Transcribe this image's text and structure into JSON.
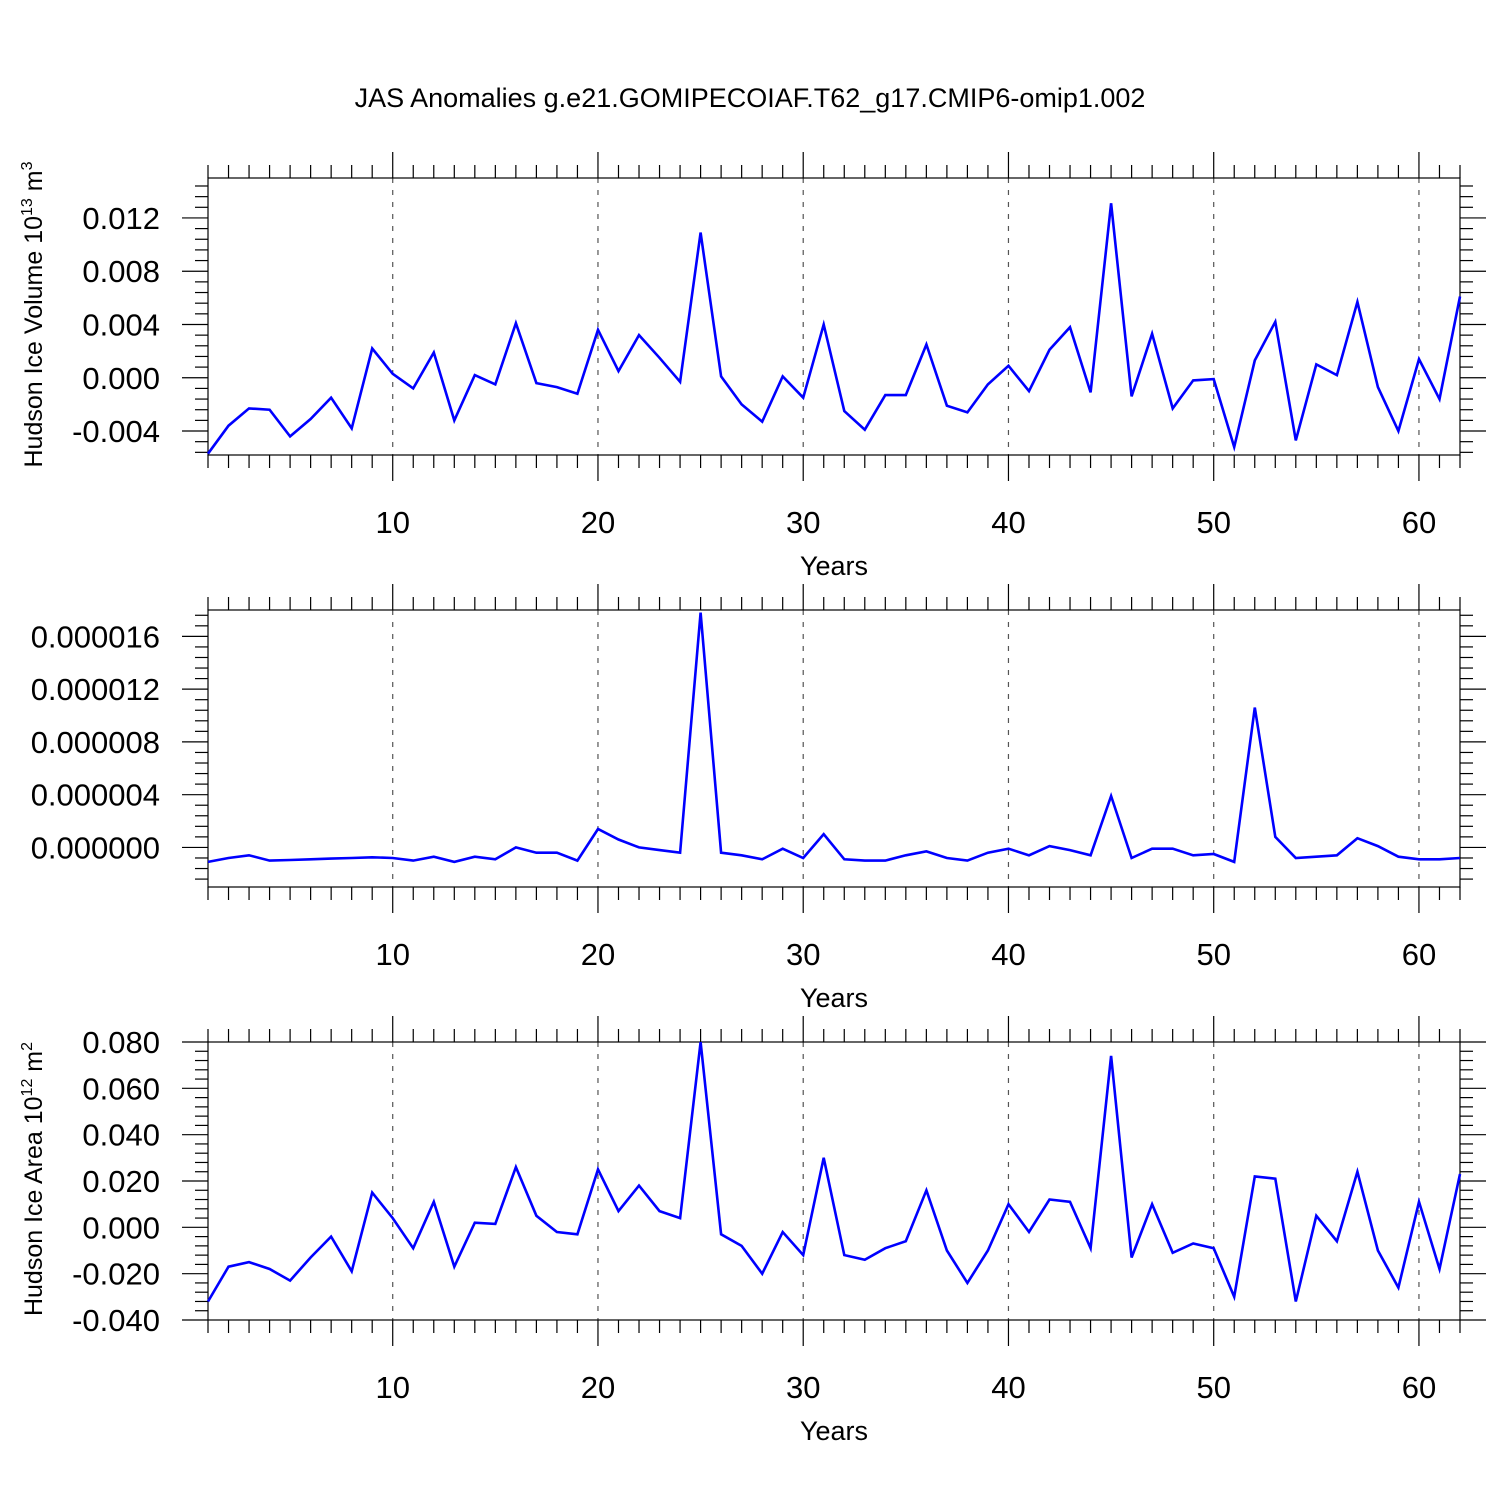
{
  "title": "JAS Anomalies g.e21.GOMIPECOIAF.T62_g17.CMIP6-omip1.002",
  "colors": {
    "line": "#0000ff",
    "axes": "#000000"
  },
  "chart_data": [
    {
      "type": "line",
      "title": "",
      "xlabel": "Years",
      "ylabel": {
        "text": "Hudson Ice Volume 10",
        "sup": "13",
        "tail": " m",
        "sup2": "3"
      },
      "xlim": [
        1,
        62
      ],
      "ylim": [
        -0.0058,
        0.015
      ],
      "xticks": [
        10,
        20,
        30,
        40,
        50,
        60
      ],
      "xtick_labels": [
        "10",
        "20",
        "30",
        "40",
        "50",
        "60"
      ],
      "yticks": [
        -0.004,
        0.0,
        0.004,
        0.008,
        0.012
      ],
      "ytick_labels": [
        "-0.004",
        "0.000",
        "0.004",
        "0.008",
        "0.012"
      ],
      "grid": "vertical dashed",
      "x": [
        1,
        2,
        3,
        4,
        5,
        6,
        7,
        8,
        9,
        10,
        11,
        12,
        13,
        14,
        15,
        16,
        17,
        18,
        19,
        20,
        21,
        22,
        23,
        24,
        25,
        26,
        27,
        28,
        29,
        30,
        31,
        32,
        33,
        34,
        35,
        36,
        37,
        38,
        39,
        40,
        41,
        42,
        43,
        44,
        45,
        46,
        47,
        48,
        49,
        50,
        51,
        52,
        53,
        54,
        55,
        56,
        57,
        58,
        59,
        60,
        61,
        62
      ],
      "values": [
        -0.0057,
        -0.0036,
        -0.0023,
        -0.0024,
        -0.0044,
        -0.0031,
        -0.0015,
        -0.0038,
        0.0022,
        0.0003,
        -0.0008,
        0.0019,
        -0.0032,
        0.0002,
        -0.0005,
        0.0041,
        -0.0004,
        -0.0007,
        -0.0012,
        0.0036,
        0.0005,
        0.0032,
        0.0015,
        -0.0003,
        0.0109,
        0.0001,
        -0.002,
        -0.0033,
        0.0001,
        -0.0015,
        0.004,
        -0.0025,
        -0.0039,
        -0.0013,
        -0.0013,
        0.0025,
        -0.0021,
        -0.0026,
        -0.0005,
        0.0009,
        -0.001,
        0.0021,
        0.0038,
        -0.0011,
        0.0131,
        -0.0014,
        0.0033,
        -0.0023,
        -0.0002,
        -0.0001,
        -0.0052,
        0.0013,
        0.0042,
        -0.0047,
        0.001,
        0.0002,
        0.0057,
        -0.0007,
        -0.004,
        0.0014,
        -0.0016,
        0.0061
      ]
    },
    {
      "type": "line",
      "title": "",
      "xlabel": "Years",
      "ylabel": {
        "text": "",
        "sup": "",
        "tail": "",
        "sup2": ""
      },
      "xlim": [
        1,
        62
      ],
      "ylim": [
        -3e-06,
        1.8e-05
      ],
      "xticks": [
        10,
        20,
        30,
        40,
        50,
        60
      ],
      "xtick_labels": [
        "10",
        "20",
        "30",
        "40",
        "50",
        "60"
      ],
      "yticks": [
        0.0,
        4e-06,
        8e-06,
        1.2e-05,
        1.6e-05
      ],
      "ytick_labels": [
        "0.000000",
        "0.000004",
        "0.000008",
        "0.000012",
        "0.000016"
      ],
      "grid": "vertical dashed",
      "x": [
        1,
        2,
        3,
        4,
        5,
        6,
        7,
        8,
        9,
        10,
        11,
        12,
        13,
        14,
        15,
        16,
        17,
        18,
        19,
        20,
        21,
        22,
        23,
        24,
        25,
        26,
        27,
        28,
        29,
        30,
        31,
        32,
        33,
        34,
        35,
        36,
        37,
        38,
        39,
        40,
        41,
        42,
        43,
        44,
        45,
        46,
        47,
        48,
        49,
        50,
        51,
        52,
        53,
        54,
        55,
        56,
        57,
        58,
        59,
        60,
        61,
        62
      ],
      "values": [
        -1.1e-06,
        -8e-07,
        -6e-07,
        -1e-06,
        -9.5e-07,
        -9e-07,
        -8.5e-07,
        -8e-07,
        -7.5e-07,
        -8e-07,
        -1e-06,
        -7e-07,
        -1.1e-06,
        -7e-07,
        -9e-07,
        0.0,
        -4e-07,
        -4e-07,
        -1e-06,
        1.4e-06,
        6e-07,
        0.0,
        -2e-07,
        -4e-07,
        1.78e-05,
        -4e-07,
        -6e-07,
        -9e-07,
        -1e-07,
        -8e-07,
        1e-06,
        -9e-07,
        -1e-06,
        -1e-06,
        -6e-07,
        -3e-07,
        -8e-07,
        -1e-06,
        -4e-07,
        -1e-07,
        -6e-07,
        1e-07,
        -2e-07,
        -6e-07,
        3.9e-06,
        -8e-07,
        -1e-07,
        -1e-07,
        -6e-07,
        -5e-07,
        -1.1e-06,
        1.06e-05,
        8e-07,
        -8e-07,
        -7e-07,
        -6e-07,
        7e-07,
        1e-07,
        -7e-07,
        -9e-07,
        -9e-07,
        -8e-07
      ]
    },
    {
      "type": "line",
      "title": "",
      "xlabel": "Years",
      "ylabel": {
        "text": "Hudson Ice Area 10",
        "sup": "12",
        "tail": " m",
        "sup2": "2"
      },
      "xlim": [
        1,
        62
      ],
      "ylim": [
        -0.04,
        0.08
      ],
      "xticks": [
        10,
        20,
        30,
        40,
        50,
        60
      ],
      "xtick_labels": [
        "10",
        "20",
        "30",
        "40",
        "50",
        "60"
      ],
      "yticks": [
        -0.04,
        -0.02,
        0.0,
        0.02,
        0.04,
        0.06,
        0.08
      ],
      "ytick_labels": [
        "-0.040",
        "-0.020",
        "0.000",
        "0.020",
        "0.040",
        "0.060",
        "0.080"
      ],
      "grid": "vertical dashed",
      "x": [
        1,
        2,
        3,
        4,
        5,
        6,
        7,
        8,
        9,
        10,
        11,
        12,
        13,
        14,
        15,
        16,
        17,
        18,
        19,
        20,
        21,
        22,
        23,
        24,
        25,
        26,
        27,
        28,
        29,
        30,
        31,
        32,
        33,
        34,
        35,
        36,
        37,
        38,
        39,
        40,
        41,
        42,
        43,
        44,
        45,
        46,
        47,
        48,
        49,
        50,
        51,
        52,
        53,
        54,
        55,
        56,
        57,
        58,
        59,
        60,
        61,
        62
      ],
      "values": [
        -0.032,
        -0.017,
        -0.015,
        -0.018,
        -0.023,
        -0.013,
        -0.004,
        -0.019,
        0.015,
        0.004,
        -0.009,
        0.011,
        -0.017,
        0.002,
        0.0015,
        0.026,
        0.005,
        -0.002,
        -0.003,
        0.025,
        0.007,
        0.018,
        0.007,
        0.004,
        0.08,
        -0.003,
        -0.008,
        -0.02,
        -0.002,
        -0.012,
        0.03,
        -0.012,
        -0.014,
        -0.009,
        -0.006,
        0.016,
        -0.01,
        -0.024,
        -0.01,
        0.01,
        -0.002,
        0.012,
        0.011,
        -0.009,
        0.074,
        -0.013,
        0.01,
        -0.011,
        -0.007,
        -0.009,
        -0.03,
        0.022,
        0.021,
        -0.032,
        0.005,
        -0.006,
        0.024,
        -0.01,
        -0.026,
        0.011,
        -0.018,
        0.023
      ]
    }
  ]
}
